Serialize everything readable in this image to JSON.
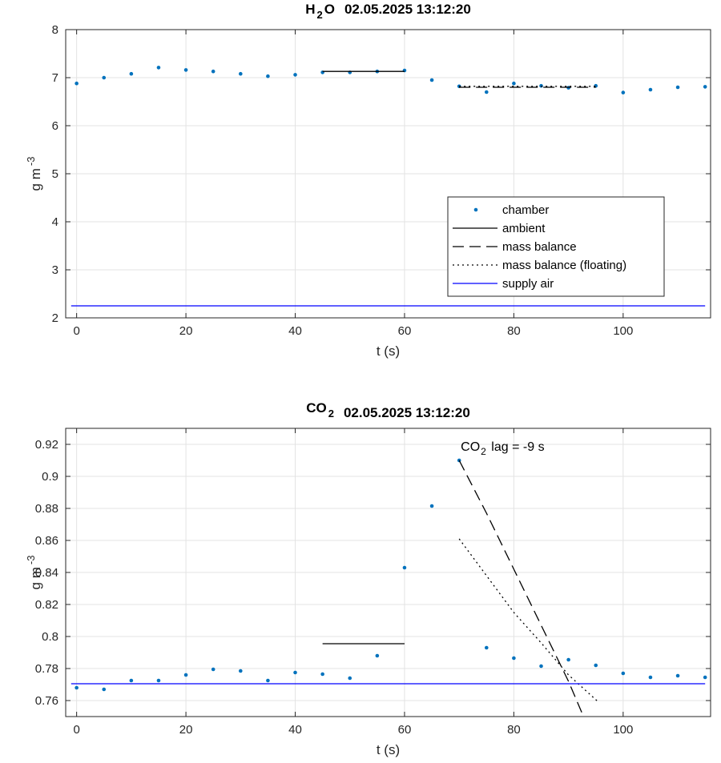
{
  "chart_data": [
    {
      "type": "scatter",
      "title_species": "H",
      "title_species_sub": "2",
      "title_species_tail": "O",
      "title_date": "02.05.2025 13:12:20",
      "xlabel": "t (s)",
      "ylabel_main": "g m",
      "ylabel_sup": "-3",
      "xlim": [
        -2,
        116
      ],
      "ylim": [
        2,
        8
      ],
      "xticks": [
        0,
        20,
        40,
        60,
        80,
        100
      ],
      "yticks": [
        2,
        3,
        4,
        5,
        6,
        7,
        8
      ],
      "grid": true,
      "legend_position": "center-right",
      "series": [
        {
          "name": "chamber",
          "style": "dots",
          "color": "#0072BD",
          "x": [
            0,
            5,
            10,
            15,
            20,
            25,
            30,
            35,
            40,
            45,
            50,
            55,
            60,
            65,
            70,
            75,
            80,
            85,
            90,
            95,
            100,
            105,
            110,
            115
          ],
          "y": [
            6.88,
            7.0,
            7.08,
            7.21,
            7.16,
            7.13,
            7.08,
            7.03,
            7.06,
            7.11,
            7.11,
            7.13,
            7.15,
            6.95,
            6.82,
            6.7,
            6.88,
            6.83,
            6.79,
            6.83,
            6.69,
            6.75,
            6.8,
            6.81
          ]
        },
        {
          "name": "ambient",
          "style": "solid",
          "color": "#000000",
          "x": [
            45,
            60
          ],
          "y": [
            7.13,
            7.13
          ]
        },
        {
          "name": "mass balance",
          "style": "dashed",
          "color": "#000000",
          "x": [
            70,
            95
          ],
          "y": [
            6.8,
            6.8
          ]
        },
        {
          "name": "mass balance (floating)",
          "style": "dotted",
          "color": "#000000",
          "x": [
            70,
            95
          ],
          "y": [
            6.82,
            6.82
          ]
        },
        {
          "name": "supply air",
          "style": "solid",
          "color": "#0000FF",
          "x": [
            -1,
            115
          ],
          "y": [
            2.25,
            2.25
          ]
        }
      ]
    },
    {
      "type": "scatter",
      "title_species": "CO",
      "title_species_sub": "2",
      "title_species_tail": "",
      "title_date": "02.05.2025 13:12:20",
      "xlabel": "t (s)",
      "ylabel_main": "g m",
      "ylabel_sup": "-3",
      "xlim": [
        -2,
        116
      ],
      "ylim": [
        0.75,
        0.93
      ],
      "xticks": [
        0,
        20,
        40,
        60,
        80,
        100
      ],
      "yticks": [
        0.76,
        0.78,
        0.8,
        0.82,
        0.84,
        0.86,
        0.88,
        0.9,
        0.92
      ],
      "grid": true,
      "annotation": {
        "main": "CO",
        "sub": "2",
        "rest": " lag = -9 s",
        "x": 70,
        "y": 0.915
      },
      "series": [
        {
          "style": "dots",
          "color": "#0072BD",
          "x": [
            0,
            5,
            10,
            15,
            20,
            25,
            30,
            35,
            40,
            45,
            50,
            55,
            60,
            65,
            70,
            75,
            80,
            85,
            90,
            95,
            100,
            105,
            110,
            115
          ],
          "y": [
            0.768,
            0.767,
            0.7725,
            0.7725,
            0.776,
            0.7795,
            0.7785,
            0.7725,
            0.7775,
            0.7765,
            0.774,
            0.788,
            0.843,
            0.8815,
            0.91,
            0.793,
            0.7865,
            0.7815,
            0.7855,
            0.782,
            0.777,
            0.7745,
            0.7755,
            0.7745
          ]
        },
        {
          "style": "solid",
          "color": "#000000",
          "x": [
            45,
            60
          ],
          "y": [
            0.7955,
            0.7955
          ]
        },
        {
          "style": "dashed",
          "color": "#000000",
          "x": [
            70,
            75,
            80,
            85,
            90,
            94
          ],
          "y": [
            0.91,
            0.877,
            0.842,
            0.807,
            0.772,
            0.74
          ]
        },
        {
          "style": "dotted",
          "color": "#000000",
          "x": [
            70,
            75,
            80,
            85,
            90,
            95.5
          ],
          "y": [
            0.861,
            0.838,
            0.815,
            0.796,
            0.776,
            0.759
          ]
        },
        {
          "style": "solid",
          "color": "#0000FF",
          "x": [
            -1,
            115
          ],
          "y": [
            0.7705,
            0.7705
          ]
        }
      ]
    }
  ]
}
